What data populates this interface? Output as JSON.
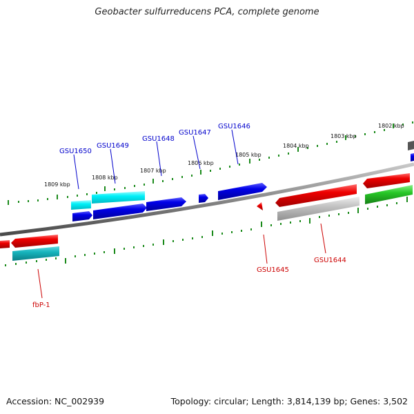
{
  "title": "Geobacter sulfurreducens PCA, complete genome",
  "footer": {
    "accession": "Accession: NC_002939",
    "summary": "Topology: circular; Length: 3,814,139 bp; Genes: 3,502"
  },
  "colors": {
    "forward_gene": "#0000e0",
    "reverse_gene": "#e80000",
    "forward_rna": "#00e8f0",
    "reverse_rna": "#10b8c0",
    "pseudo": "#bdbdbd",
    "other": "#22c022",
    "backbone": "#808080",
    "ticks": "#1a8a1a",
    "forward_label": "#0000cc",
    "reverse_label": "#cc0000"
  },
  "kbp_labels": [
    "1809 kbp",
    "1808 kbp",
    "1807 kbp",
    "1806 kbp",
    "1805 kbp",
    "1804 kbp",
    "1803 kbp",
    "1802 kbp"
  ],
  "gene_labels": {
    "forward": [
      "GSU1650",
      "GSU1649",
      "GSU1648",
      "GSU1647",
      "GSU1646"
    ],
    "reverse": [
      "fbP-1",
      "GSU1645",
      "GSU1644"
    ]
  }
}
